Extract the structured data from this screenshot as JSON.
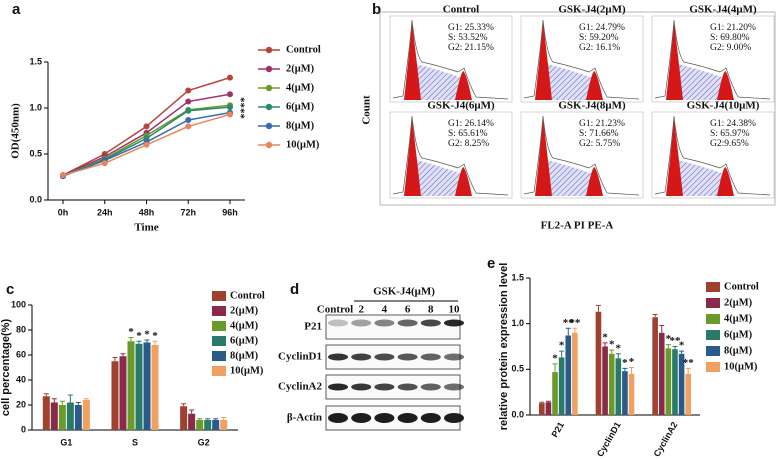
{
  "panels": [
    "a",
    "b",
    "c",
    "d",
    "e"
  ],
  "chart_data": [
    {
      "type": "line",
      "xlabel": "Time",
      "ylabel": "OD(450nm)",
      "categories": [
        "0h",
        "24h",
        "48h",
        "72h",
        "96h"
      ],
      "ylim": [
        0,
        1.5
      ],
      "yticks": [
        {
          "value": 0,
          "label": "0.0"
        },
        0.5,
        {
          "value": 1,
          "label": "1.0"
        },
        1.5
      ],
      "annotation": "****",
      "series": [
        {
          "name": "Control",
          "color": "#b5443a",
          "values": [
            0.27,
            0.5,
            0.8,
            1.19,
            1.33
          ]
        },
        {
          "name": "2(μM)",
          "color": "#a0306a",
          "values": [
            0.27,
            0.47,
            0.73,
            1.07,
            1.15
          ]
        },
        {
          "name": "4(μM)",
          "color": "#6a9a2a",
          "values": [
            0.26,
            0.45,
            0.7,
            0.98,
            1.03
          ]
        },
        {
          "name": "6(μM)",
          "color": "#2a8a6a",
          "values": [
            0.26,
            0.44,
            0.67,
            0.97,
            1.01
          ]
        },
        {
          "name": "8(μM)",
          "color": "#3a6ab0",
          "values": [
            0.26,
            0.43,
            0.63,
            0.87,
            0.95
          ]
        },
        {
          "name": "10(μM)",
          "color": "#e8855a",
          "values": [
            0.27,
            0.4,
            0.6,
            0.8,
            0.93
          ]
        }
      ]
    },
    {
      "type": "bar",
      "ylabel": "cell percentage(%)",
      "categories": [
        "G1",
        "S",
        "G2"
      ],
      "ylim": [
        0,
        100
      ],
      "yticks": [
        0,
        20,
        40,
        60,
        80,
        100
      ],
      "series": [
        {
          "name": "Control",
          "color": "#a0412f",
          "values": [
            27,
            55,
            19
          ],
          "errors": [
            2,
            3,
            2
          ],
          "stars": [
            null,
            null,
            null
          ]
        },
        {
          "name": "2(μM)",
          "color": "#8a2a4a",
          "values": [
            22,
            59,
            13
          ],
          "errors": [
            3,
            2,
            3
          ],
          "stars": [
            null,
            null,
            null
          ]
        },
        {
          "name": "4(μM)",
          "color": "#6a9a2a",
          "values": [
            20,
            71,
            8
          ],
          "errors": [
            3,
            3,
            1
          ],
          "stars": [
            null,
            "*",
            null
          ]
        },
        {
          "name": "6(μM)",
          "color": "#2a7a6a",
          "values": [
            22,
            69,
            8
          ],
          "errors": [
            6,
            2,
            1
          ],
          "stars": [
            null,
            "*",
            null
          ]
        },
        {
          "name": "8(μM)",
          "color": "#2a5a8a",
          "values": [
            20,
            70,
            8
          ],
          "errors": [
            2,
            2,
            1
          ],
          "stars": [
            null,
            "*",
            null
          ]
        },
        {
          "name": "10(μM)",
          "color": "#f0a060",
          "values": [
            24,
            68,
            8
          ],
          "errors": [
            1,
            3,
            2
          ],
          "stars": [
            null,
            "*",
            null
          ]
        }
      ]
    },
    {
      "type": "bar",
      "ylabel": "relative protein expression level",
      "categories": [
        "P21",
        "CyclinD1",
        "CyclinA2"
      ],
      "ylim": [
        0,
        1.5
      ],
      "yticks": [
        {
          "value": 0,
          "label": "0.0"
        },
        0.5,
        {
          "value": 1,
          "label": "1.0"
        },
        1.5
      ],
      "rotate_labels": true,
      "series": [
        {
          "name": "Control",
          "color": "#a0412f",
          "values": [
            0.13,
            1.13,
            1.07
          ],
          "errors": [
            0.01,
            0.07,
            0.03
          ],
          "stars": [
            null,
            null,
            null
          ]
        },
        {
          "name": "2(μM)",
          "color": "#8a2a4a",
          "values": [
            0.14,
            0.75,
            0.9
          ],
          "errors": [
            0.01,
            0.04,
            0.08
          ],
          "stars": [
            null,
            "*",
            null
          ]
        },
        {
          "name": "4(μM)",
          "color": "#6a9a2a",
          "values": [
            0.47,
            0.67,
            0.73
          ],
          "errors": [
            0.09,
            0.04,
            0.04
          ],
          "stars": [
            "*",
            "*",
            "*"
          ]
        },
        {
          "name": "6(μM)",
          "color": "#2a7a6a",
          "values": [
            0.63,
            0.62,
            0.72
          ],
          "errors": [
            0.07,
            0.05,
            0.03
          ],
          "stars": [
            "*",
            "*",
            "**"
          ]
        },
        {
          "name": "8(μM)",
          "color": "#2a5a8a",
          "values": [
            0.87,
            0.48,
            0.67
          ],
          "errors": [
            0.08,
            0.03,
            0.03
          ],
          "stars": [
            "**",
            "*",
            "*"
          ]
        },
        {
          "name": "10(μM)",
          "color": "#f0a060",
          "values": [
            0.9,
            0.45,
            0.45
          ],
          "errors": [
            0.05,
            0.07,
            0.06
          ],
          "stars": [
            "**",
            "*",
            "**"
          ]
        }
      ]
    }
  ],
  "flow": {
    "ylabel": "Count",
    "xlabel": "FL2-A PI PE-A",
    "plots": [
      {
        "title": "Control",
        "stats": [
          "G1: 25.33%",
          "S:  53.52%",
          "G2: 21.15%"
        ]
      },
      {
        "title": "GSK-J4(2μM)",
        "stats": [
          "G1: 24.79%",
          "S:  59.20%",
          "G2: 16.1%"
        ]
      },
      {
        "title": "GSK-J4(4μM)",
        "stats": [
          "G1: 21.20%",
          "S:  69.80%",
          "G2: 9.00%"
        ]
      },
      {
        "title": "GSK-J4(6μM)",
        "stats": [
          "G1: 26.14%",
          "S:  65.61%",
          "G2: 8.25%"
        ]
      },
      {
        "title": "GSK-J4(8μM)",
        "stats": [
          "G1: 21.23%",
          "S:  71.66%",
          "G2: 5.75%"
        ]
      },
      {
        "title": "GSK-J4(10μM)",
        "stats": [
          "G1: 24.38%",
          "S:  65.97%",
          "G2:9.65%"
        ]
      }
    ]
  },
  "blot": {
    "title": "GSK-J4(μM)",
    "lanes": [
      "Control",
      "2",
      "4",
      "6",
      "8",
      "10"
    ],
    "rows": [
      "P21",
      "CyclinD1",
      "CyclinA2",
      "β-Actin"
    ]
  }
}
